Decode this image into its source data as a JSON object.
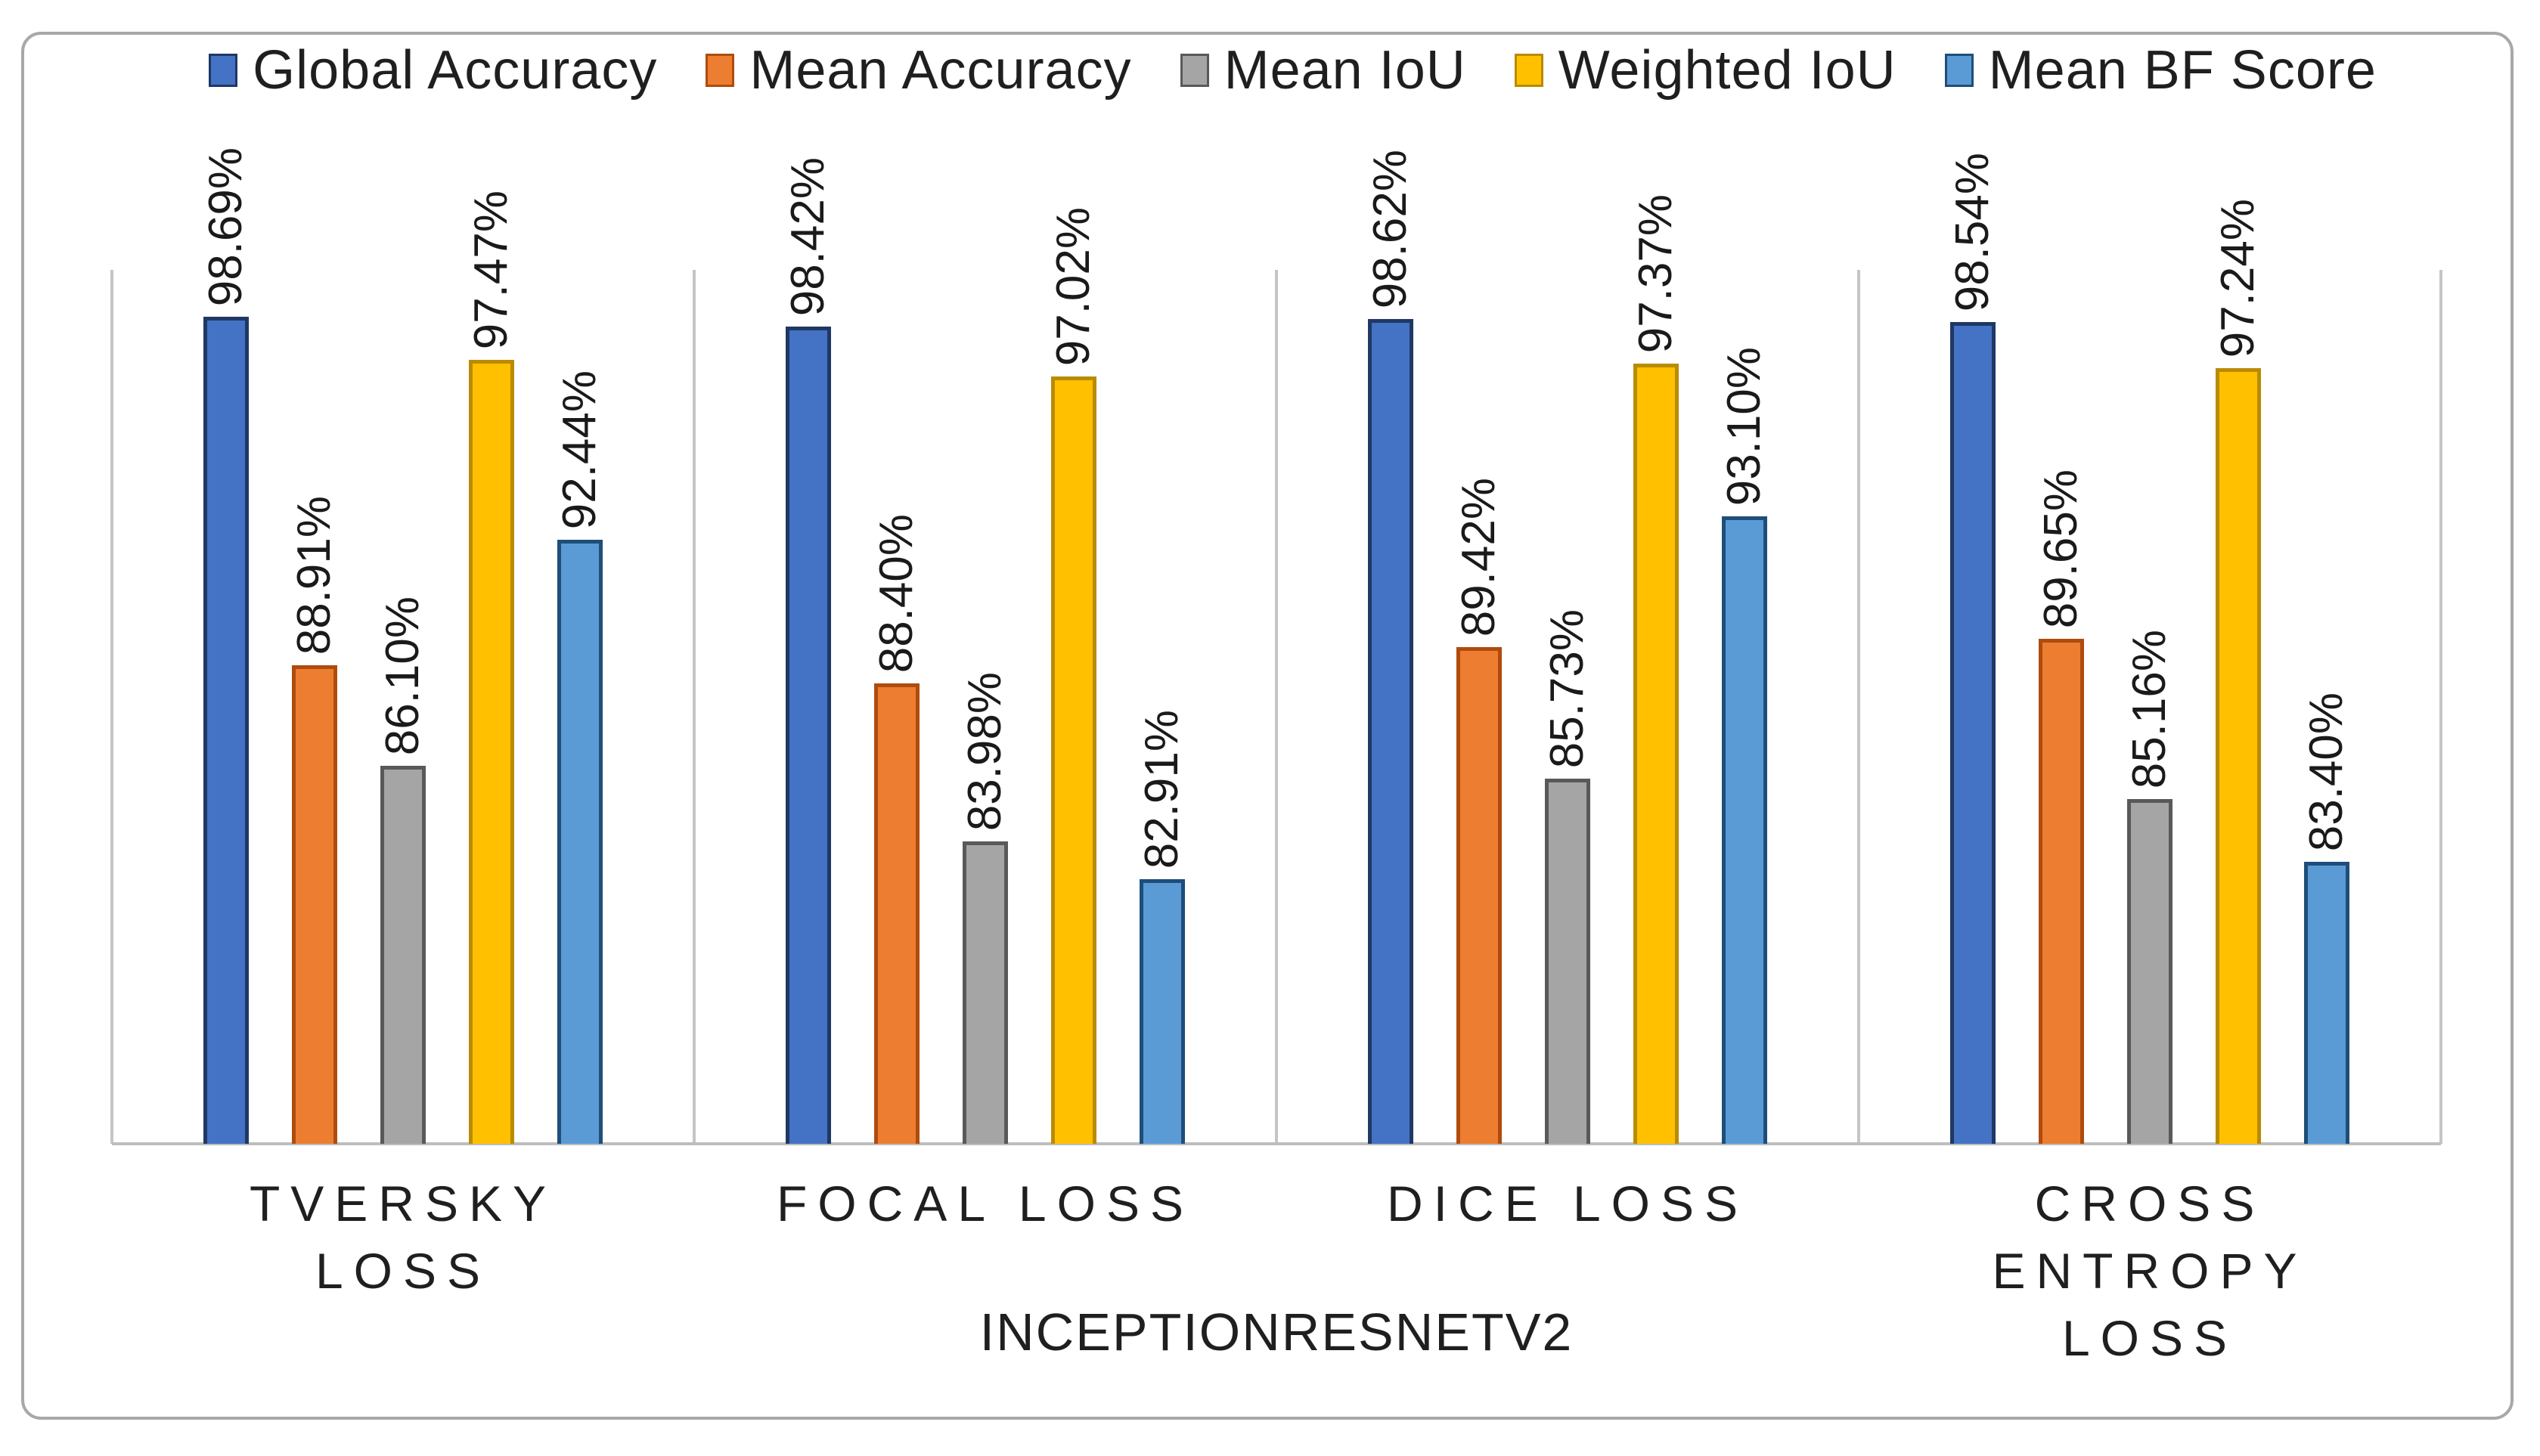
{
  "chart_data": {
    "type": "bar",
    "title": "",
    "xlabel": "INCEPTIONRESNETV2",
    "ylabel": "",
    "categories": [
      "TVERSKY LOSS",
      "FOCAL LOSS",
      "DICE LOSS",
      "CROSS ENTROPY LOSS"
    ],
    "series": [
      {
        "name": "Global Accuracy",
        "fill": "#4472C4",
        "border": "#1F3864",
        "values": [
          98.69,
          98.42,
          98.62,
          98.54
        ],
        "labels": [
          "98.69%",
          "98.42%",
          "98.62%",
          "98.54%"
        ]
      },
      {
        "name": "Mean Accuracy",
        "fill": "#ED7D31",
        "border": "#AF4B0D",
        "values": [
          88.91,
          88.4,
          89.42,
          89.65
        ],
        "labels": [
          "88.91%",
          "88.40%",
          "89.42%",
          "89.65%"
        ]
      },
      {
        "name": "Mean IoU",
        "fill": "#A5A5A5",
        "border": "#595959",
        "values": [
          86.1,
          83.98,
          85.73,
          85.16
        ],
        "labels": [
          "86.10%",
          "83.98%",
          "85.73%",
          "85.16%"
        ]
      },
      {
        "name": "Weighted IoU",
        "fill": "#FFC000",
        "border": "#B98B00",
        "values": [
          97.47,
          97.02,
          97.37,
          97.24
        ],
        "labels": [
          "97.47%",
          "97.02%",
          "97.37%",
          "97.24%"
        ]
      },
      {
        "name": "Mean BF Score",
        "fill": "#5B9BD5",
        "border": "#1E4E79",
        "values": [
          92.44,
          82.91,
          93.1,
          83.4
        ],
        "labels": [
          "92.44%",
          "82.91%",
          "93.10%",
          "83.40%"
        ]
      }
    ],
    "ylim": [
      75.5,
      100
    ],
    "legend_position": "top",
    "grid": "vertical category separator lines, no horizontal gridlines, no y tick labels",
    "data_label_rotation": -90,
    "data_label_format": "percent, two decimals"
  }
}
